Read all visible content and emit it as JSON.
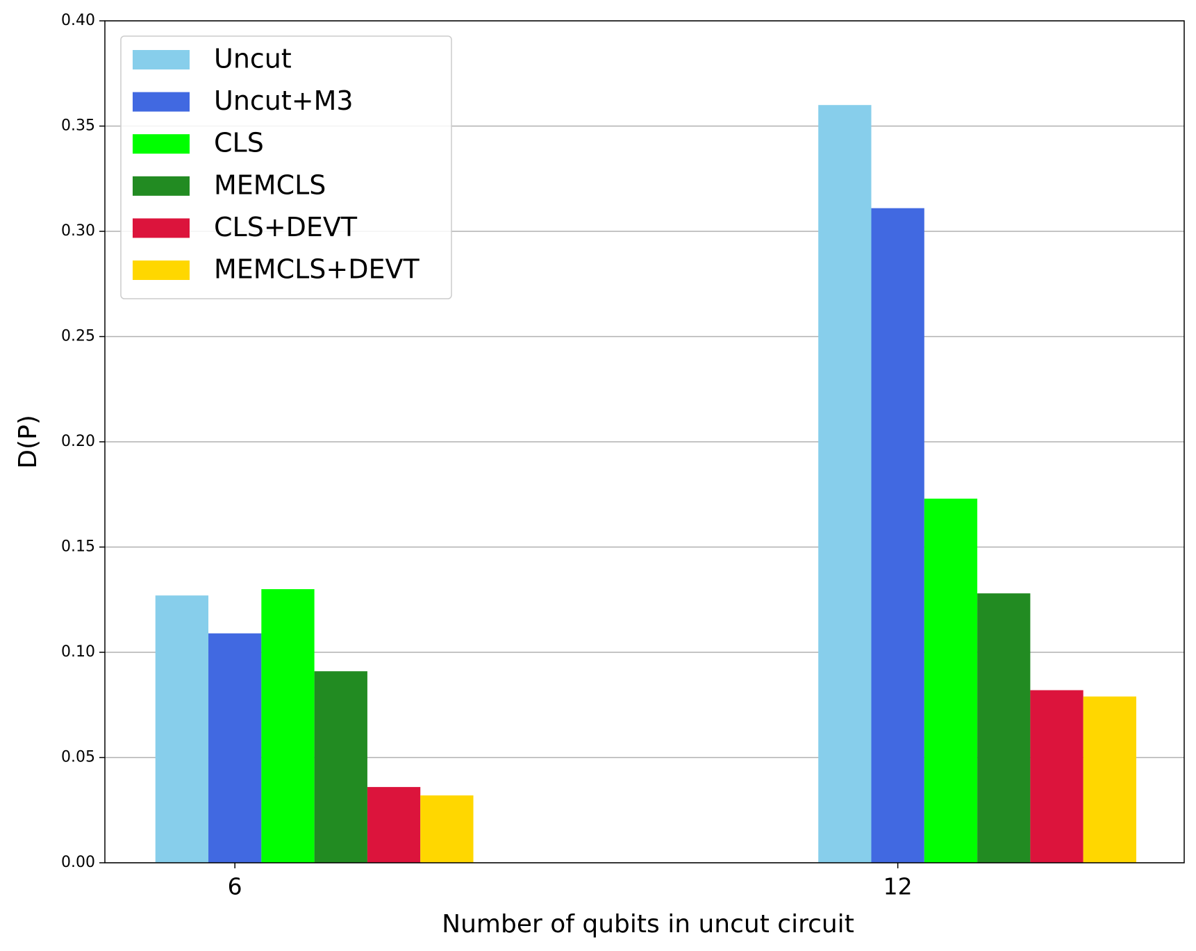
{
  "chart_data": {
    "type": "bar",
    "x_label": "Number of qubits in uncut circuit",
    "y_label": "D(P)",
    "categories": [
      "6",
      "12"
    ],
    "series": [
      {
        "name": "Uncut",
        "color": "#87ceeb",
        "values": [
          0.127,
          0.36
        ]
      },
      {
        "name": "Uncut+M3",
        "color": "#4169e1",
        "values": [
          0.109,
          0.311
        ]
      },
      {
        "name": "CLS",
        "color": "#00ff00",
        "values": [
          0.13,
          0.173
        ]
      },
      {
        "name": "MEMCLS",
        "color": "#228b22",
        "values": [
          0.091,
          0.128
        ]
      },
      {
        "name": "CLS+DEVT",
        "color": "#dc143c",
        "values": [
          0.036,
          0.082
        ]
      },
      {
        "name": "MEMCLS+DEVT",
        "color": "#ffd700",
        "values": [
          0.032,
          0.079
        ]
      }
    ],
    "ylim": [
      0,
      0.4
    ],
    "yticks": [
      {
        "value": 0,
        "label": "0.00"
      },
      {
        "value": 0.05,
        "label": "0.05"
      },
      {
        "value": 0.1,
        "label": "0.10"
      },
      {
        "value": 0.15,
        "label": "0.15"
      },
      {
        "value": 0.2,
        "label": "0.20"
      },
      {
        "value": 0.25,
        "label": "0.25"
      },
      {
        "value": 0.3,
        "label": "0.30"
      },
      {
        "value": 0.35,
        "label": "0.35"
      },
      {
        "value": 0.4,
        "label": "0.40"
      }
    ],
    "grid": true,
    "legend": "upper-left"
  }
}
